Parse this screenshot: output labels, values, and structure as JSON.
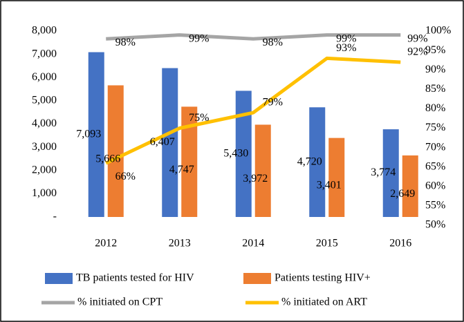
{
  "chart_data": {
    "type": "bar-line",
    "categories": [
      "2012",
      "2013",
      "2014",
      "2015",
      "2016"
    ],
    "series": [
      {
        "name": "TB patients tested for HIV",
        "type": "bar",
        "color": "#4472c4",
        "values": [
          7093,
          6407,
          5430,
          4720,
          3774
        ],
        "value_labels": [
          "7,093",
          "6,407",
          "5,430",
          "4,720",
          "3,774"
        ]
      },
      {
        "name": "Patients testing HIV+",
        "type": "bar",
        "color": "#ed7d31",
        "values": [
          5666,
          4747,
          3972,
          3401,
          2649
        ],
        "value_labels": [
          "5,666",
          "4,747",
          "3,972",
          "3,401",
          "2,649"
        ]
      },
      {
        "name": "% initiated on CPT",
        "type": "line",
        "axis": "y2",
        "color": "#a5a5a5",
        "values": [
          98,
          99,
          98,
          99,
          99
        ],
        "value_labels": [
          "98%",
          "99%",
          "98%",
          "99%",
          "99%"
        ]
      },
      {
        "name": "% initiated on ART",
        "type": "line",
        "axis": "y2",
        "color": "#ffc000",
        "values": [
          66,
          75,
          79,
          93,
          92
        ],
        "value_labels": [
          "66%",
          "75%",
          "79%",
          "93%",
          "92%"
        ]
      }
    ],
    "ylim": [
      0,
      8000
    ],
    "yticks": [
      {
        "value": 0,
        "label": "-"
      },
      {
        "value": 1000,
        "label": "1,000"
      },
      {
        "value": 2000,
        "label": "2,000"
      },
      {
        "value": 3000,
        "label": "3,000"
      },
      {
        "value": 4000,
        "label": "4,000"
      },
      {
        "value": 5000,
        "label": "5,000"
      },
      {
        "value": 6000,
        "label": "6,000"
      },
      {
        "value": 7000,
        "label": "7,000"
      },
      {
        "value": 8000,
        "label": "8,000"
      }
    ],
    "y2lim": [
      50,
      100
    ],
    "y2ticks": [
      {
        "value": 50,
        "label": "50%"
      },
      {
        "value": 55,
        "label": "55%"
      },
      {
        "value": 60,
        "label": "60%"
      },
      {
        "value": 65,
        "label": "65%"
      },
      {
        "value": 70,
        "label": "70%"
      },
      {
        "value": 75,
        "label": "75%"
      },
      {
        "value": 80,
        "label": "80%"
      },
      {
        "value": 85,
        "label": "85%"
      },
      {
        "value": 90,
        "label": "90%"
      },
      {
        "value": 95,
        "label": "95%"
      },
      {
        "value": 100,
        "label": "100%"
      }
    ],
    "legend": "bottom"
  }
}
